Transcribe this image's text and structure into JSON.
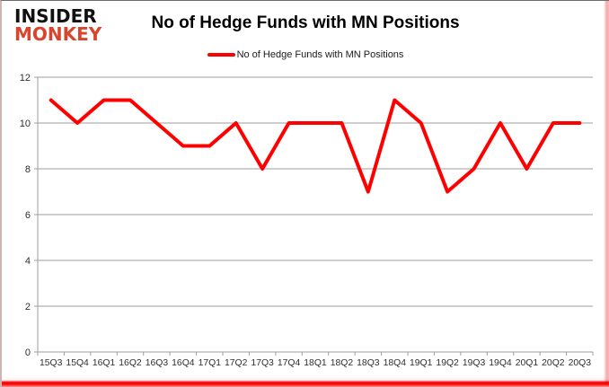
{
  "logo": {
    "line1": "INSIDER",
    "line2": "MONKEY"
  },
  "header": {
    "title": "No of Hedge Funds with MN Positions"
  },
  "legend": {
    "label": "No of Hedge Funds with MN Positions"
  },
  "colors": {
    "series_red": "#ff0000",
    "logo_red": "#d9452c",
    "gridline_gray": "#9e9e9e",
    "axis_text": "#2e2e2e"
  },
  "chart_data": {
    "type": "line",
    "title": "No of Hedge Funds with MN Positions",
    "categories": [
      "15Q3",
      "15Q4",
      "16Q1",
      "16Q2",
      "16Q3",
      "16Q4",
      "17Q1",
      "17Q2",
      "17Q3",
      "17Q4",
      "18Q1",
      "18Q2",
      "18Q3",
      "18Q4",
      "19Q1",
      "19Q2",
      "19Q3",
      "19Q4",
      "20Q1",
      "20Q2",
      "20Q3"
    ],
    "series": [
      {
        "name": "No of Hedge Funds with MN Positions",
        "color": "#ff0000",
        "values": [
          11,
          10,
          11,
          11,
          10,
          9,
          9,
          10,
          8,
          10,
          10,
          10,
          7,
          11,
          10,
          7,
          8,
          10,
          8,
          10,
          10
        ]
      }
    ],
    "xlabel": "",
    "ylabel": "",
    "ylim": [
      0,
      12
    ],
    "yticks": [
      0,
      2,
      4,
      6,
      8,
      10,
      12
    ],
    "grid": "horizontal",
    "legend_position": "top-center"
  }
}
